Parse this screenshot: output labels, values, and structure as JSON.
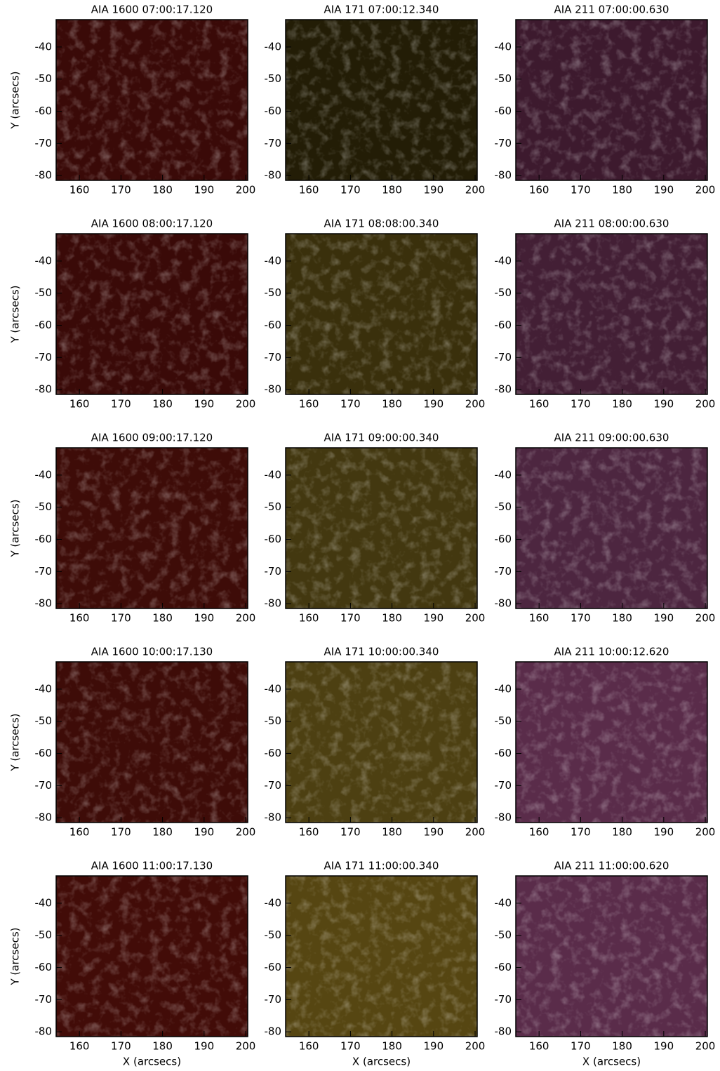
{
  "chart_data": [
    {
      "type": "image",
      "title": "AIA 1600 07:00:17.120",
      "color": "#3a0a08",
      "ylabel": "Y (arcsecs)",
      "xlim": [
        154.4,
        200.5
      ],
      "ylim": [
        -81.5,
        -31.5
      ],
      "xticks": [
        160,
        170,
        180,
        190,
        200
      ],
      "yticks": [
        -40,
        -50,
        -60,
        -70,
        -80
      ]
    },
    {
      "type": "image",
      "title": "AIA 171 07:00:12.340",
      "color": "#231d06",
      "xlim": [
        154.4,
        200.5
      ],
      "ylim": [
        -81.5,
        -31.5
      ],
      "xticks": [
        160,
        170,
        180,
        190,
        200
      ],
      "yticks": [
        -40,
        -50,
        -60,
        -70,
        -80
      ]
    },
    {
      "type": "image",
      "title": "AIA 211 07:00:00.630",
      "color": "#3d1a2e",
      "xlim": [
        154.4,
        200.5
      ],
      "ylim": [
        -81.5,
        -31.5
      ],
      "xticks": [
        160,
        170,
        180,
        190,
        200
      ],
      "yticks": [
        -40,
        -50,
        -60,
        -70,
        -80
      ]
    },
    {
      "type": "image",
      "title": "AIA 1600 08:00:17.120",
      "color": "#3a0a08",
      "ylabel": "Y (arcsecs)",
      "xlim": [
        154.4,
        200.5
      ],
      "ylim": [
        -81.5,
        -31.5
      ],
      "xticks": [
        160,
        170,
        180,
        190,
        200
      ],
      "yticks": [
        -40,
        -50,
        -60,
        -70,
        -80
      ]
    },
    {
      "type": "image",
      "title": "AIA 171 08:08:00.340",
      "color": "#3a300c",
      "xlim": [
        154.4,
        200.5
      ],
      "ylim": [
        -81.5,
        -31.5
      ],
      "xticks": [
        160,
        170,
        180,
        190,
        200
      ],
      "yticks": [
        -40,
        -50,
        -60,
        -70,
        -80
      ]
    },
    {
      "type": "image",
      "title": "AIA 211 08:00:00.630",
      "color": "#431f35",
      "xlim": [
        154.4,
        200.5
      ],
      "ylim": [
        -81.5,
        -31.5
      ],
      "xticks": [
        160,
        170,
        180,
        190,
        200
      ],
      "yticks": [
        -40,
        -50,
        -60,
        -70,
        -80
      ]
    },
    {
      "type": "image",
      "title": "AIA 1600 09:00:17.120",
      "color": "#3e0c08",
      "ylabel": "Y (arcsecs)",
      "xlim": [
        154.4,
        200.5
      ],
      "ylim": [
        -81.5,
        -31.5
      ],
      "xticks": [
        160,
        170,
        180,
        190,
        200
      ],
      "yticks": [
        -40,
        -50,
        -60,
        -70,
        -80
      ]
    },
    {
      "type": "image",
      "title": "AIA 171 09:00:00.340",
      "color": "#433810",
      "xlim": [
        154.4,
        200.5
      ],
      "ylim": [
        -81.5,
        -31.5
      ],
      "xticks": [
        160,
        170,
        180,
        190,
        200
      ],
      "yticks": [
        -40,
        -50,
        -60,
        -70,
        -80
      ]
    },
    {
      "type": "image",
      "title": "AIA 211 09:00:00.630",
      "color": "#4d2640",
      "xlim": [
        154.4,
        200.5
      ],
      "ylim": [
        -81.5,
        -31.5
      ],
      "xticks": [
        160,
        170,
        180,
        190,
        200
      ],
      "yticks": [
        -40,
        -50,
        -60,
        -70,
        -80
      ]
    },
    {
      "type": "image",
      "title": "AIA 1600 10:00:17.130",
      "color": "#3e0c08",
      "ylabel": "Y (arcsecs)",
      "xlim": [
        154.4,
        200.5
      ],
      "ylim": [
        -81.5,
        -31.5
      ],
      "xticks": [
        160,
        170,
        180,
        190,
        200
      ],
      "yticks": [
        -40,
        -50,
        -60,
        -70,
        -80
      ]
    },
    {
      "type": "image",
      "title": "AIA 171 10:00:00.340",
      "color": "#4d4012",
      "xlim": [
        154.4,
        200.5
      ],
      "ylim": [
        -81.5,
        -31.5
      ],
      "xticks": [
        160,
        170,
        180,
        190,
        200
      ],
      "yticks": [
        -40,
        -50,
        -60,
        -70,
        -80
      ]
    },
    {
      "type": "image",
      "title": "AIA 211 10:00:12.620",
      "color": "#5a2c4a",
      "xlim": [
        154.4,
        200.5
      ],
      "ylim": [
        -81.5,
        -31.5
      ],
      "xticks": [
        160,
        170,
        180,
        190,
        200
      ],
      "yticks": [
        -40,
        -50,
        -60,
        -70,
        -80
      ]
    },
    {
      "type": "image",
      "title": "AIA 1600 11:00:17.130",
      "color": "#420c08",
      "ylabel": "Y (arcsecs)",
      "xlabel": "X (arcsecs)",
      "xlim": [
        154.4,
        200.5
      ],
      "ylim": [
        -81.5,
        -31.5
      ],
      "xticks": [
        160,
        170,
        180,
        190,
        200
      ],
      "yticks": [
        -40,
        -50,
        -60,
        -70,
        -80
      ]
    },
    {
      "type": "image",
      "title": "AIA 171 11:00:00.340",
      "color": "#564612",
      "xlabel": "X (arcsecs)",
      "xlim": [
        154.4,
        200.5
      ],
      "ylim": [
        -81.5,
        -31.5
      ],
      "xticks": [
        160,
        170,
        180,
        190,
        200
      ],
      "yticks": [
        -40,
        -50,
        -60,
        -70,
        -80
      ]
    },
    {
      "type": "image",
      "title": "AIA 211 11:00:00.620",
      "color": "#5a2c4a",
      "xlabel": "X (arcsecs)",
      "xlim": [
        154.4,
        200.5
      ],
      "ylim": [
        -81.5,
        -31.5
      ],
      "xticks": [
        160,
        170,
        180,
        190,
        200
      ],
      "yticks": [
        -40,
        -50,
        -60,
        -70,
        -80
      ]
    }
  ]
}
